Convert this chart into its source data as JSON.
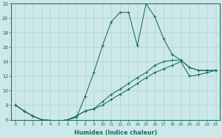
{
  "xlabel": "Humidex (Indice chaleur)",
  "xlim": [
    -0.5,
    23.5
  ],
  "ylim": [
    6,
    22
  ],
  "yticks": [
    6,
    8,
    10,
    12,
    14,
    16,
    18,
    20,
    22
  ],
  "xticks": [
    0,
    1,
    2,
    3,
    4,
    5,
    6,
    7,
    8,
    9,
    10,
    11,
    12,
    13,
    14,
    15,
    16,
    17,
    18,
    19,
    20,
    21,
    22,
    23
  ],
  "bg_color": "#cce8e8",
  "line_color": "#1a6b5a",
  "grid_color": "#b0d0d0",
  "line1_x": [
    0,
    1,
    2,
    3,
    4,
    5,
    6,
    7,
    8,
    9,
    10,
    11,
    12,
    13,
    14,
    15,
    16,
    17,
    18,
    19,
    20,
    21,
    22,
    23
  ],
  "line1_y": [
    8.0,
    7.2,
    6.5,
    6.0,
    5.9,
    5.8,
    6.0,
    6.3,
    9.2,
    12.5,
    16.2,
    19.5,
    20.8,
    20.8,
    16.2,
    22.0,
    20.2,
    17.2,
    15.0,
    14.2,
    13.2,
    12.8,
    12.8,
    12.8
  ],
  "line2_x": [
    0,
    1,
    2,
    3,
    4,
    5,
    6,
    7,
    8,
    9,
    10,
    11,
    12,
    13,
    14,
    15,
    16,
    17,
    18,
    19,
    20,
    21,
    22,
    23
  ],
  "line2_y": [
    8.0,
    7.2,
    6.5,
    6.0,
    5.9,
    5.8,
    6.0,
    6.5,
    7.2,
    7.5,
    8.5,
    9.5,
    10.2,
    11.0,
    11.8,
    12.5,
    13.5,
    14.0,
    14.2,
    14.2,
    13.2,
    12.8,
    12.8,
    12.8
  ],
  "line3_x": [
    0,
    1,
    2,
    3,
    4,
    5,
    6,
    7,
    8,
    9,
    10,
    11,
    12,
    13,
    14,
    15,
    16,
    17,
    18,
    19,
    20,
    21,
    22,
    23
  ],
  "line3_y": [
    8.0,
    7.2,
    6.5,
    6.0,
    5.9,
    5.8,
    6.0,
    6.5,
    7.2,
    7.5,
    8.0,
    8.8,
    9.5,
    10.2,
    11.0,
    11.8,
    12.5,
    13.0,
    13.5,
    14.0,
    12.0,
    12.2,
    12.5,
    12.8
  ]
}
